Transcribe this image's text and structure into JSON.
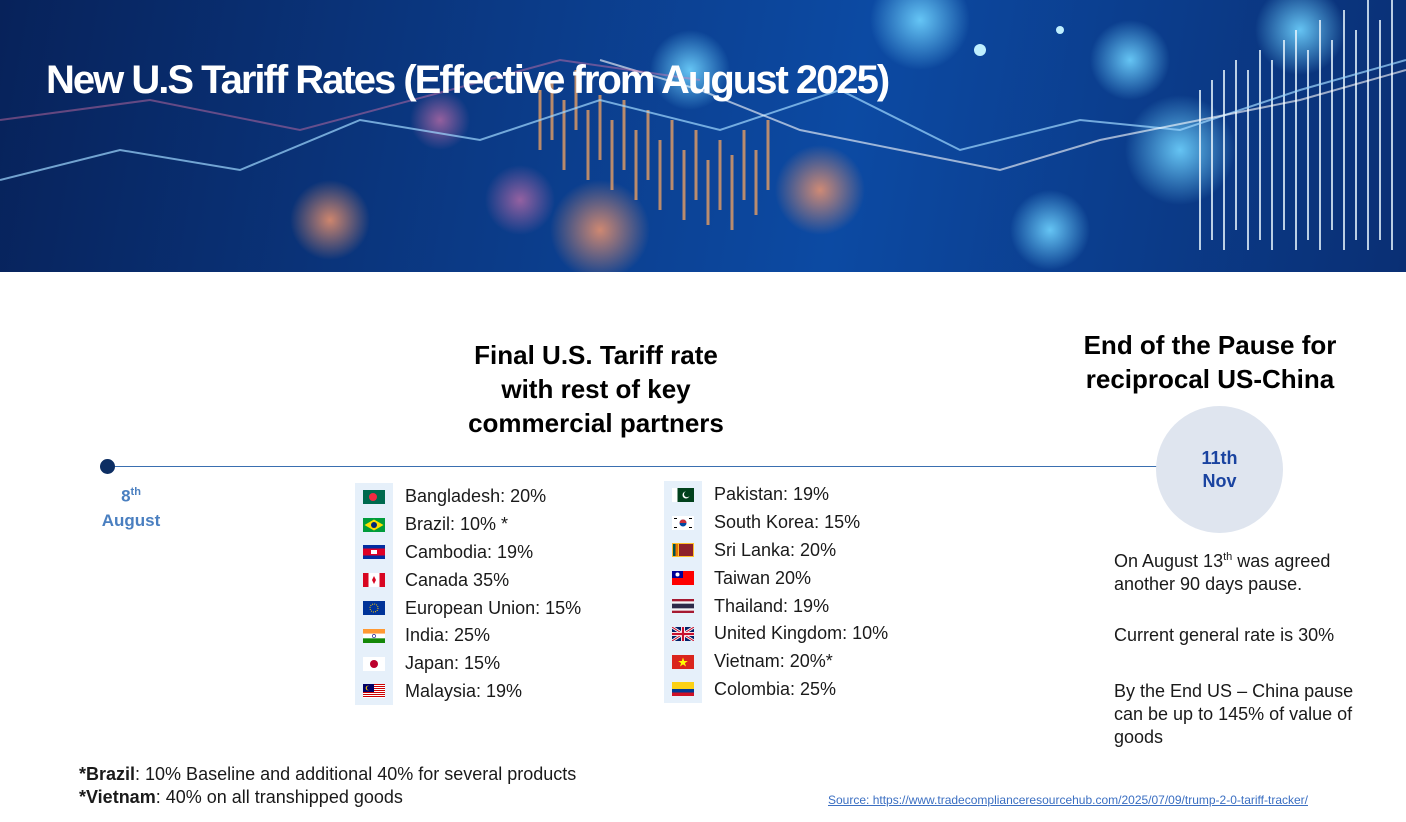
{
  "header": {
    "title": "New U.S Tariff Rates (Effective from August 2025)"
  },
  "center_heading": {
    "line1": "Final U.S. Tariff rate",
    "line2": "with rest of key",
    "line3": "commercial partners"
  },
  "right_heading": {
    "line1": "End of the Pause for",
    "line2": "reciprocal US-China"
  },
  "timeline": {
    "start_day": "8",
    "start_suffix": "th",
    "start_month": "August",
    "end_day": "11th",
    "end_month": "Nov"
  },
  "countries_left": [
    {
      "flag": "bangladesh-flag-icon",
      "text": "Bangladesh: 20%"
    },
    {
      "flag": "brazil-flag-icon",
      "text": "Brazil: 10% *"
    },
    {
      "flag": "cambodia-flag-icon",
      "text": "Cambodia: 19%"
    },
    {
      "flag": "canada-flag-icon",
      "text": "Canada 35%"
    },
    {
      "flag": "european-union-flag-icon",
      "text": "European Union: 15%"
    },
    {
      "flag": "india-flag-icon",
      "text": "India: 25%"
    },
    {
      "flag": "japan-flag-icon",
      "text": "Japan: 15%"
    },
    {
      "flag": "malaysia-flag-icon",
      "text": "Malaysia: 19%"
    }
  ],
  "countries_right": [
    {
      "flag": "pakistan-flag-icon",
      "text": "Pakistan: 19%"
    },
    {
      "flag": "south-korea-flag-icon",
      "text": "South Korea: 15%"
    },
    {
      "flag": "sri-lanka-flag-icon",
      "text": "Sri Lanka: 20%"
    },
    {
      "flag": "taiwan-flag-icon",
      "text": "Taiwan 20%"
    },
    {
      "flag": "thailand-flag-icon",
      "text": "Thailand: 19%"
    },
    {
      "flag": "united-kingdom-flag-icon",
      "text": "United Kingdom: 10%"
    },
    {
      "flag": "vietnam-flag-icon",
      "text": "Vietnam: 20%*"
    },
    {
      "flag": "colombia-flag-icon",
      "text": "Colombia: 25%"
    }
  ],
  "notes": {
    "note1_a": "On August 13",
    "note1_sup": "th",
    "note1_b": " was agreed another 90 days pause.",
    "note2": "Current general rate is 30%",
    "note3": "By the End US – China pause can be up to 145% of value of goods"
  },
  "footnotes": {
    "brazil_label": "*Brazil",
    "brazil_text": ": 10% Baseline and additional 40% for several products",
    "vietnam_label": "*Vietnam",
    "vietnam_text": ": 40% on all transhipped goods"
  },
  "source": {
    "text": "Source: https://www.tradecomplianceresourcehub.com/2025/07/09/trump-2-0-tariff-tracker/"
  },
  "colors": {
    "banner_dark": "#07225a",
    "timeline_dot": "#0d2e63",
    "date_blue": "#4a7fc0",
    "circle_fill": "#dfe5ef",
    "circle_text": "#1a43a0",
    "link": "#3b6fc2"
  }
}
